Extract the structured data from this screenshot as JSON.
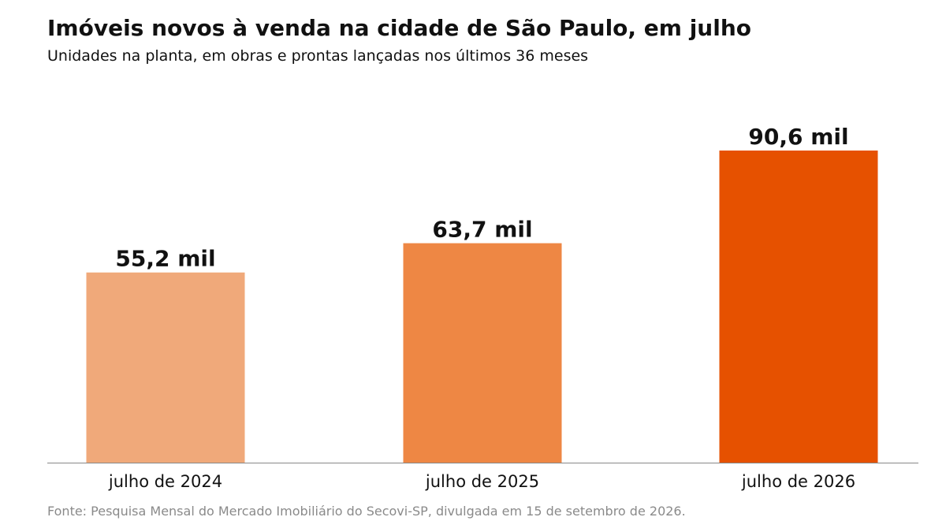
{
  "title": "Imóveis novos à venda na cidade de São Paulo, em julho",
  "subtitle": "Unidades na planta, em obras e prontas lançadas nos últimos 36 meses",
  "source": "Fonte: Pesquisa Mensal do Mercado Imobiliário do Secovi-SP, divulgada em 15 de setembro de 2026.",
  "chart_data": {
    "type": "bar",
    "categories": [
      "julho de 2024",
      "julho de 2025",
      "julho de 2026"
    ],
    "values": [
      55.2,
      63.7,
      90.6
    ],
    "value_labels": [
      "55,2 mil",
      "63,7 mil",
      "90,6 mil"
    ],
    "colors": [
      "#f0a97a",
      "#ee8744",
      "#e65100"
    ],
    "baseline_color": "#888888",
    "ylim": [
      0,
      90.6
    ],
    "grid": false,
    "legend": "none"
  }
}
